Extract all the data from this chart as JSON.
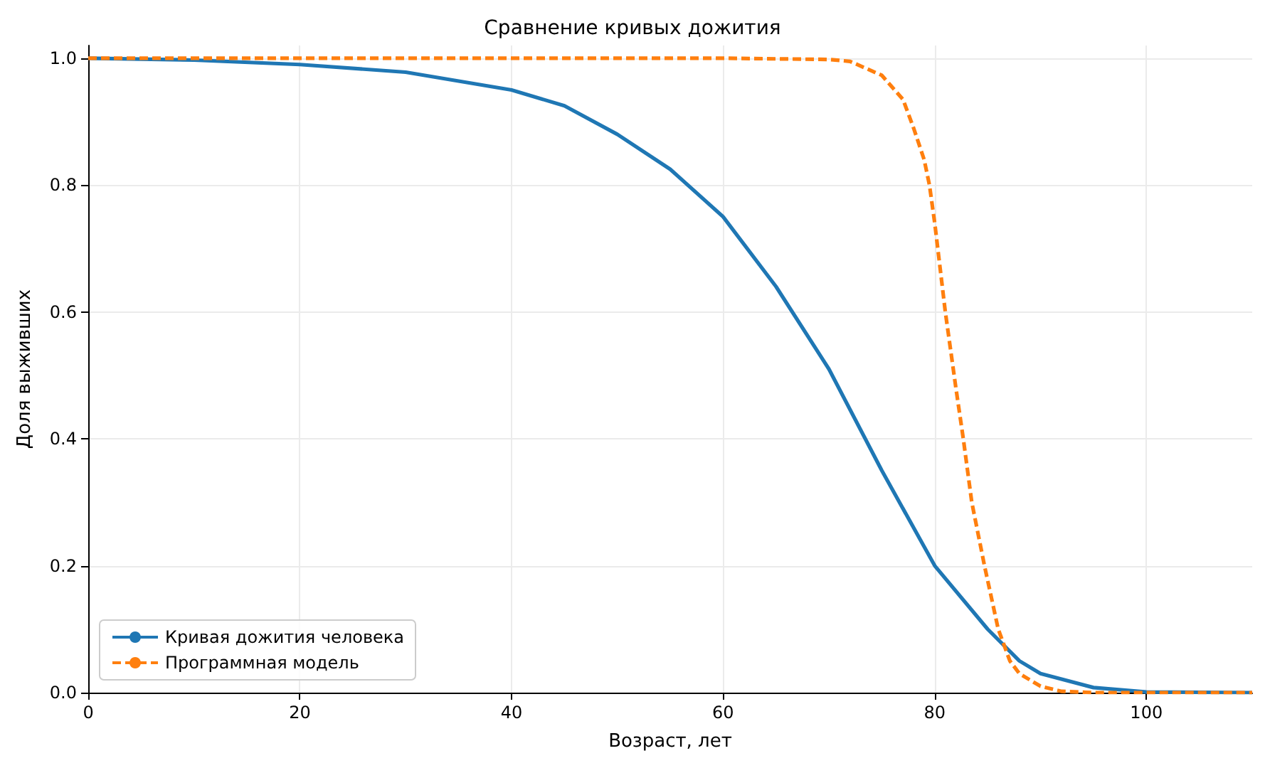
{
  "chart_data": {
    "type": "line",
    "title": "Сравнение кривых дожития",
    "xlabel": "Возраст, лет",
    "ylabel": "Доля выживших",
    "series": [
      {
        "name": "Кривая дожития человека",
        "color": "#1f77b4",
        "line_style": "solid",
        "x": [
          0,
          10,
          20,
          30,
          40,
          45,
          50,
          55,
          60,
          65,
          70,
          75,
          80,
          85,
          88,
          90,
          95,
          100,
          110
        ],
        "values": [
          1,
          0.997,
          0.99,
          0.978,
          0.95,
          0.925,
          0.88,
          0.825,
          0.75,
          0.64,
          0.51,
          0.35,
          0.2,
          0.1,
          0.05,
          0.03,
          0.008,
          0.001,
          0
        ]
      },
      {
        "name": "Программная модель",
        "color": "#ff7f0e",
        "line_style": "dashed",
        "x": [
          0,
          20,
          40,
          60,
          70,
          72,
          75,
          77,
          78,
          79,
          79.5,
          80,
          81,
          82,
          82.7,
          83.5,
          84.7,
          86,
          87.1,
          88,
          90,
          92,
          95,
          110
        ],
        "values": [
          1,
          1,
          1,
          1,
          0.998,
          0.995,
          0.973,
          0.935,
          0.89,
          0.84,
          0.8,
          0.74,
          0.6,
          0.48,
          0.4,
          0.3,
          0.2,
          0.1,
          0.05,
          0.03,
          0.01,
          0.002,
          0,
          0
        ]
      }
    ],
    "xlim": [
      0,
      110
    ],
    "xticks": [
      0,
      20,
      40,
      60,
      80,
      100
    ],
    "ylim": [
      0,
      1.02
    ],
    "yticks": [
      {
        "value": 0,
        "label": "0.0"
      },
      {
        "value": 0.2,
        "label": "0.2"
      },
      {
        "value": 0.4,
        "label": "0.4"
      },
      {
        "value": 0.6,
        "label": "0.6"
      },
      {
        "value": 0.8,
        "label": "0.8"
      },
      {
        "value": 1,
        "label": "1.0"
      }
    ],
    "grid": true,
    "legend": "bottom left",
    "marker": "none"
  }
}
